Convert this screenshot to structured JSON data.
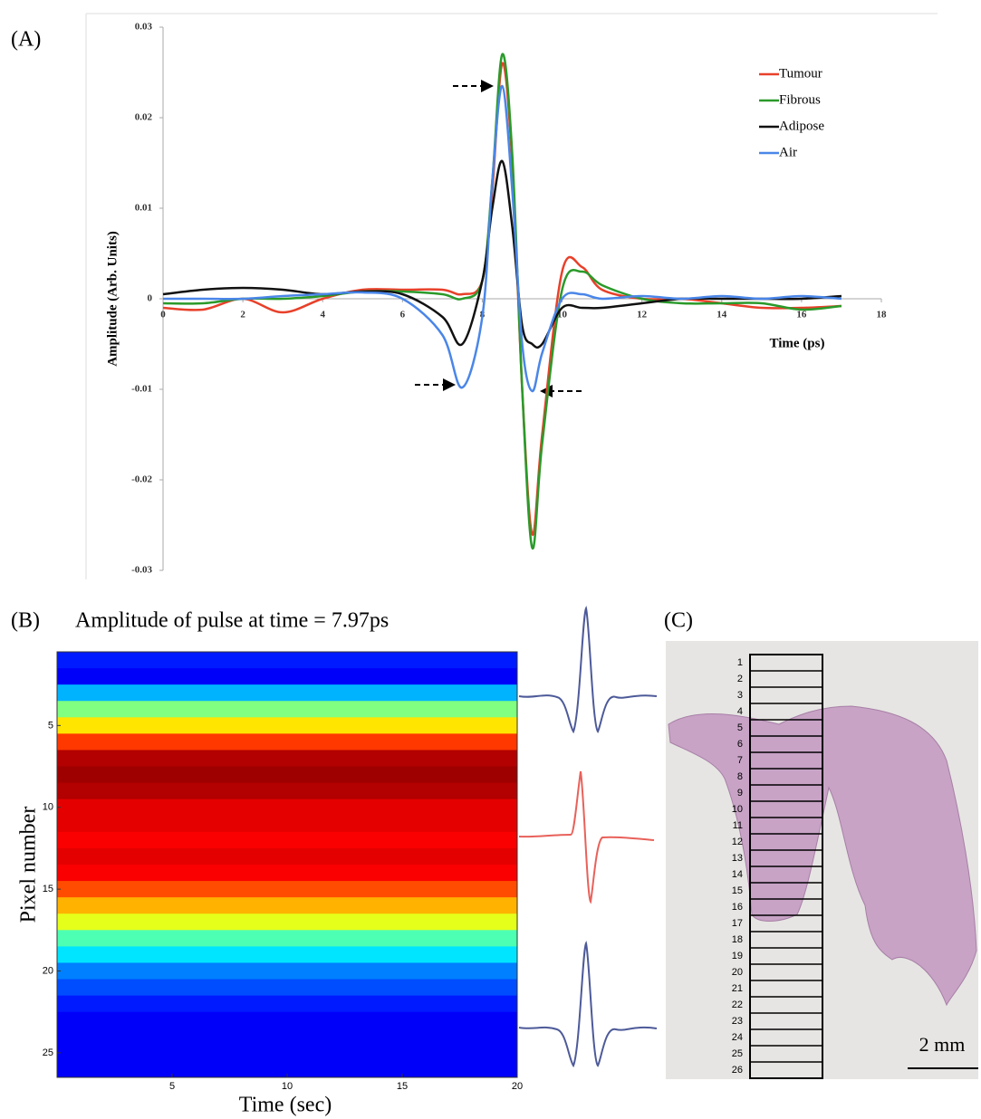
{
  "chart_data": [
    {
      "type": "line",
      "panel_label": "(A)",
      "y_label": "Amplitude (Arb. Units)",
      "x_label": "Time (ps)",
      "x": [
        0,
        1,
        2,
        3,
        4,
        5,
        6,
        7,
        7.5,
        8,
        8.25,
        8.5,
        8.75,
        9,
        9.25,
        9.5,
        10,
        10.5,
        11,
        12,
        13,
        14,
        15,
        16,
        17
      ],
      "series": [
        {
          "name": "Tumour",
          "color": "#e8402a",
          "values": [
            -0.001,
            -0.0012,
            0,
            -0.0015,
            0,
            0.001,
            0.001,
            0.001,
            0.0005,
            0.002,
            0.012,
            0.026,
            0.015,
            -0.01,
            -0.026,
            -0.015,
            0.003,
            0.0035,
            0.001,
            0,
            0,
            -0.0005,
            -0.001,
            -0.001,
            -0.0008
          ]
        },
        {
          "name": "Fibrous",
          "color": "#2a9a2a",
          "values": [
            -0.0005,
            -0.0005,
            0,
            0,
            0.0003,
            0.0008,
            0.0008,
            0.0005,
            0,
            0.002,
            0.013,
            0.027,
            0.016,
            -0.01,
            -0.0275,
            -0.016,
            0.001,
            0.003,
            0.0015,
            0,
            -0.0005,
            -0.0005,
            -0.0005,
            -0.0012,
            -0.0008
          ]
        },
        {
          "name": "Adipose",
          "color": "#111111",
          "values": [
            0.0005,
            0.001,
            0.0012,
            0.001,
            0.0005,
            0.0008,
            0.0005,
            -0.002,
            -0.005,
            0.002,
            0.01,
            0.0152,
            0.008,
            -0.003,
            -0.005,
            -0.005,
            -0.001,
            -0.001,
            -0.001,
            -0.0005,
            0,
            0,
            0,
            0,
            0.0003
          ]
        },
        {
          "name": "Air",
          "color": "#4a86e8",
          "values": [
            0,
            0,
            0,
            0.0003,
            0.0005,
            0.0007,
            0,
            -0.004,
            -0.0098,
            -0.002,
            0.013,
            0.0235,
            0.012,
            -0.005,
            -0.0102,
            -0.006,
            0,
            0.0005,
            0,
            0.0003,
            0,
            0.0003,
            0,
            0.0003,
            0
          ]
        }
      ],
      "xlim": [
        0,
        18
      ],
      "xticks": [
        0,
        2,
        4,
        6,
        8,
        10,
        12,
        14,
        16,
        18
      ],
      "ylim": [
        -0.03,
        0.03
      ],
      "yticks": [
        0.03,
        0.02,
        0.01,
        0,
        -0.01,
        -0.02,
        -0.03
      ],
      "legend": "upper right"
    },
    {
      "type": "heatmap",
      "panel_label": "(B)",
      "title": "Amplitude of pulse at time = 7.97ps",
      "y_label": "Pixel number",
      "x_label": "Time (sec)",
      "y": [
        1,
        2,
        3,
        4,
        5,
        6,
        7,
        8,
        9,
        10,
        11,
        12,
        13,
        14,
        15,
        16,
        17,
        18,
        19,
        20,
        21,
        22,
        23,
        24,
        25,
        26
      ],
      "values": [
        0.15,
        0.12,
        0.3,
        0.5,
        0.65,
        0.82,
        0.95,
        0.97,
        0.95,
        0.9,
        0.9,
        0.88,
        0.9,
        0.88,
        0.8,
        0.7,
        0.6,
        0.45,
        0.35,
        0.25,
        0.2,
        0.15,
        0.12,
        0.12,
        0.12,
        0.12
      ],
      "xlim": [
        0,
        20
      ],
      "xticks": [
        5,
        10,
        15,
        20
      ],
      "ylim": [
        0.5,
        26.5
      ],
      "yticks": [
        5,
        10,
        15,
        20,
        25
      ]
    }
  ],
  "panel_c": {
    "label": "(C)",
    "cell_labels": [
      "1",
      "2",
      "3",
      "4",
      "5",
      "6",
      "7",
      "8",
      "9",
      "10",
      "11",
      "12",
      "13",
      "14",
      "15",
      "16",
      "17",
      "18",
      "19",
      "20",
      "21",
      "22",
      "23",
      "24",
      "25",
      "26"
    ],
    "scale_bar": "2 mm"
  }
}
